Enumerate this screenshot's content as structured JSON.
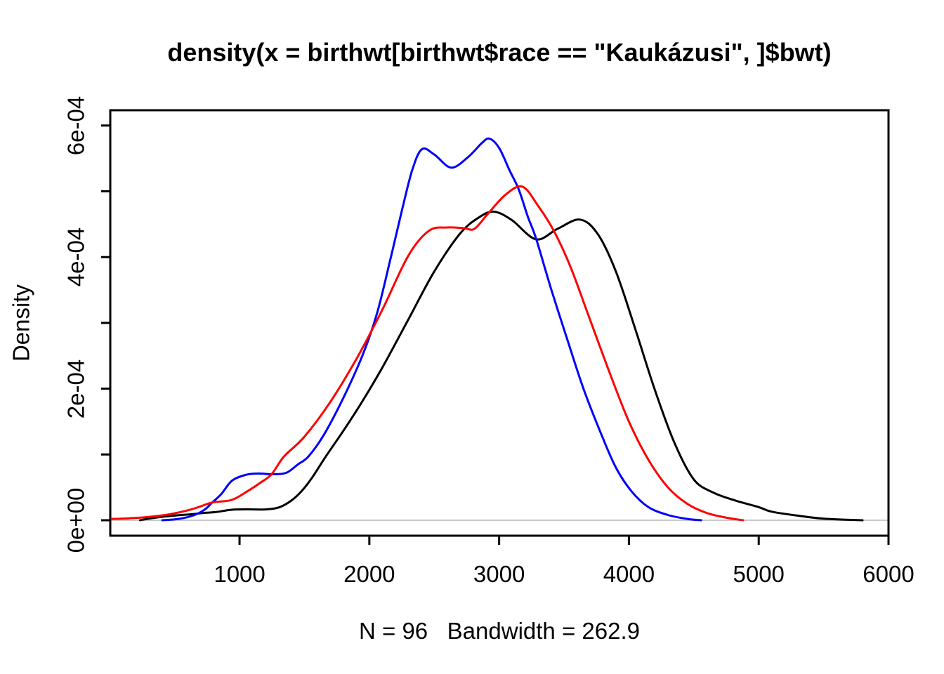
{
  "figure": {
    "title": "density(x = birthwt[birthwt$race == \"Kaukázusi\", ]$bwt)",
    "subtitle": "N = 96   Bandwidth = 262.9",
    "ylabel": "Density",
    "background_color": "#ffffff",
    "axis_color": "#000000",
    "zero_line_color": "#c9c9c9"
  },
  "chart_data": {
    "type": "line",
    "title": "density(x = birthwt[birthwt$race == \"Kaukázusi\", ]$bwt)",
    "subtitle": "N = 96   Bandwidth = 262.9",
    "xlabel": "",
    "ylabel": "Density",
    "sample_info": {
      "N": 96,
      "bandwidth": 262.9
    },
    "xlim": [
      4,
      6000
    ],
    "ylim_e04": [
      0,
      6.23
    ],
    "y_unit": "1e-04",
    "grid": false,
    "legend": "none",
    "x_tick_values": [
      1000,
      2000,
      3000,
      4000,
      5000,
      6000
    ],
    "x_tick_labels": [
      "1000",
      "2000",
      "3000",
      "4000",
      "5000",
      "6000"
    ],
    "y_tick_values_e04": [
      0,
      1,
      2,
      3,
      4,
      5,
      6
    ],
    "y_tick_labels": [
      "0e+00",
      "",
      "2e-04",
      "",
      "4e-04",
      "",
      "6e-04"
    ],
    "zero_reference_line_y": 0,
    "series": [
      {
        "name": "black",
        "color": "#000000",
        "points": [
          [
            233,
            0
          ],
          [
            320,
            0.03
          ],
          [
            420,
            0.055
          ],
          [
            520,
            0.075
          ],
          [
            620,
            0.09
          ],
          [
            720,
            0.11
          ],
          [
            820,
            0.125
          ],
          [
            941,
            0.16
          ],
          [
            1080,
            0.165
          ],
          [
            1209,
            0.165
          ],
          [
            1310,
            0.2
          ],
          [
            1400,
            0.3
          ],
          [
            1477,
            0.44
          ],
          [
            1560,
            0.65
          ],
          [
            1665,
            0.97
          ],
          [
            1800,
            1.36
          ],
          [
            1950,
            1.82
          ],
          [
            2100,
            2.32
          ],
          [
            2300,
            3.05
          ],
          [
            2500,
            3.78
          ],
          [
            2700,
            4.36
          ],
          [
            2850,
            4.61
          ],
          [
            2963,
            4.69
          ],
          [
            3100,
            4.56
          ],
          [
            3285,
            4.27
          ],
          [
            3450,
            4.43
          ],
          [
            3623,
            4.57
          ],
          [
            3760,
            4.35
          ],
          [
            3900,
            3.78
          ],
          [
            4050,
            2.9
          ],
          [
            4200,
            1.98
          ],
          [
            4350,
            1.18
          ],
          [
            4500,
            0.62
          ],
          [
            4650,
            0.42
          ],
          [
            4820,
            0.3
          ],
          [
            5000,
            0.2
          ],
          [
            5100,
            0.13
          ],
          [
            5300,
            0.07
          ],
          [
            5500,
            0.025
          ],
          [
            5800,
            0
          ]
        ]
      },
      {
        "name": "blue",
        "color": "#0000ff",
        "points": [
          [
            405,
            0
          ],
          [
            530,
            0.02
          ],
          [
            640,
            0.07
          ],
          [
            730,
            0.16
          ],
          [
            790,
            0.27
          ],
          [
            860,
            0.4
          ],
          [
            941,
            0.6
          ],
          [
            1048,
            0.69
          ],
          [
            1150,
            0.71
          ],
          [
            1250,
            0.7
          ],
          [
            1359,
            0.72
          ],
          [
            1450,
            0.85
          ],
          [
            1531,
            0.97
          ],
          [
            1650,
            1.3
          ],
          [
            1800,
            1.86
          ],
          [
            1950,
            2.52
          ],
          [
            2060,
            3.15
          ],
          [
            2160,
            3.95
          ],
          [
            2250,
            4.7
          ],
          [
            2330,
            5.32
          ],
          [
            2405,
            5.64
          ],
          [
            2500,
            5.56
          ],
          [
            2630,
            5.36
          ],
          [
            2760,
            5.52
          ],
          [
            2870,
            5.74
          ],
          [
            2926,
            5.8
          ],
          [
            3000,
            5.66
          ],
          [
            3080,
            5.32
          ],
          [
            3151,
            5.03
          ],
          [
            3220,
            4.62
          ],
          [
            3285,
            4.28
          ],
          [
            3400,
            3.52
          ],
          [
            3520,
            2.78
          ],
          [
            3650,
            2.0
          ],
          [
            3780,
            1.34
          ],
          [
            3900,
            0.8
          ],
          [
            4020,
            0.44
          ],
          [
            4150,
            0.2
          ],
          [
            4300,
            0.08
          ],
          [
            4450,
            0.02
          ],
          [
            4556,
            0
          ]
        ]
      },
      {
        "name": "red",
        "color": "#ff0000",
        "points": [
          [
            15,
            0.02
          ],
          [
            150,
            0.03
          ],
          [
            300,
            0.05
          ],
          [
            458,
            0.09
          ],
          [
            600,
            0.15
          ],
          [
            700,
            0.21
          ],
          [
            790,
            0.27
          ],
          [
            941,
            0.31
          ],
          [
            1060,
            0.44
          ],
          [
            1160,
            0.57
          ],
          [
            1247,
            0.7
          ],
          [
            1343,
            0.97
          ],
          [
            1500,
            1.27
          ],
          [
            1700,
            1.8
          ],
          [
            1900,
            2.45
          ],
          [
            2100,
            3.2
          ],
          [
            2300,
            4.02
          ],
          [
            2459,
            4.4
          ],
          [
            2600,
            4.45
          ],
          [
            2730,
            4.44
          ],
          [
            2810,
            4.43
          ],
          [
            2910,
            4.65
          ],
          [
            3050,
            4.95
          ],
          [
            3180,
            5.07
          ],
          [
            3300,
            4.78
          ],
          [
            3424,
            4.39
          ],
          [
            3550,
            3.85
          ],
          [
            3700,
            3.05
          ],
          [
            3850,
            2.25
          ],
          [
            4000,
            1.5
          ],
          [
            4150,
            0.92
          ],
          [
            4300,
            0.5
          ],
          [
            4450,
            0.25
          ],
          [
            4600,
            0.11
          ],
          [
            4750,
            0.04
          ],
          [
            4880,
            0
          ]
        ]
      }
    ]
  }
}
